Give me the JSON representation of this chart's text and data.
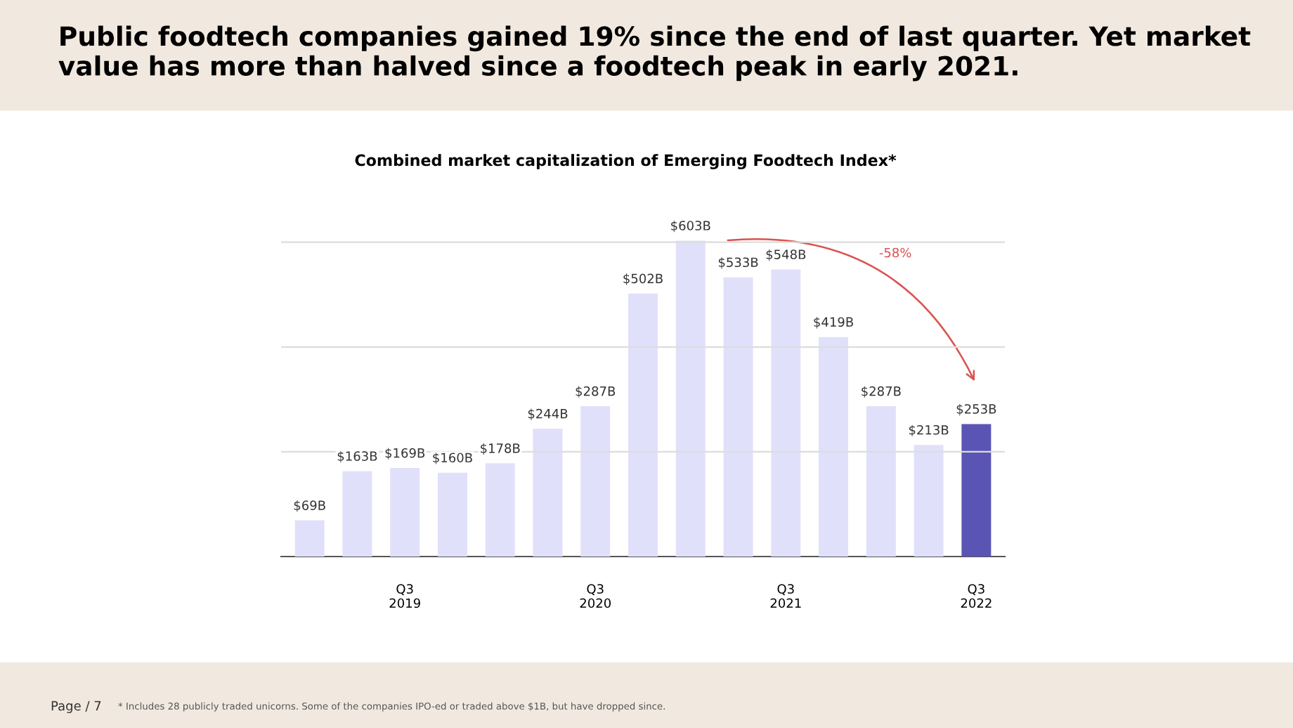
{
  "chart_data": {
    "type": "bar",
    "title": "Public foodtech companies gained 19% since the end of last quarter. Yet market value has more than halved since a foodtech peak in early 2021.",
    "subtitle": "Combined market capitalization of Emerging Foodtech Index*",
    "categories": [
      null,
      null,
      "Q3\n2019",
      null,
      null,
      null,
      "Q3\n2020",
      null,
      null,
      null,
      "Q3\n2021",
      null,
      null,
      null,
      "Q3\n2022"
    ],
    "values": [
      69,
      163,
      169,
      160,
      178,
      244,
      287,
      502,
      603,
      533,
      548,
      419,
      287,
      213,
      253
    ],
    "value_labels": [
      "$69B",
      "$163B",
      "$169B",
      "$160B",
      "$178B",
      "$244B",
      "$287B",
      "$502B",
      "$603B",
      "$533B",
      "$548B",
      "$419B",
      "$287B",
      "$213B",
      "$253B"
    ],
    "colors": [
      "#e1e0fa",
      "#e1e0fa",
      "#e1e0fa",
      "#e1e0fa",
      "#e1e0fa",
      "#e1e0fa",
      "#e1e0fa",
      "#e1e0fa",
      "#e1e0fa",
      "#e1e0fa",
      "#e1e0fa",
      "#e1e0fa",
      "#e1e0fa",
      "#e1e0fa",
      "#5a55b5"
    ],
    "tick_labels": "x",
    "ref_lines": [
      {
        "axis": "y",
        "value": 200,
        "label": null,
        "color": "#dddddd"
      },
      {
        "axis": "y",
        "value": 400,
        "label": null,
        "color": "#dddddd"
      },
      {
        "axis": "y",
        "value": 600,
        "label": null,
        "color": "#dddddd"
      }
    ],
    "annotations": [
      "-58%",
      "* Includes 28 publicly traded unicorns. Some of the companies IPO-ed or traded above $1B, but have dropped since.",
      "Page / 7"
    ]
  }
}
